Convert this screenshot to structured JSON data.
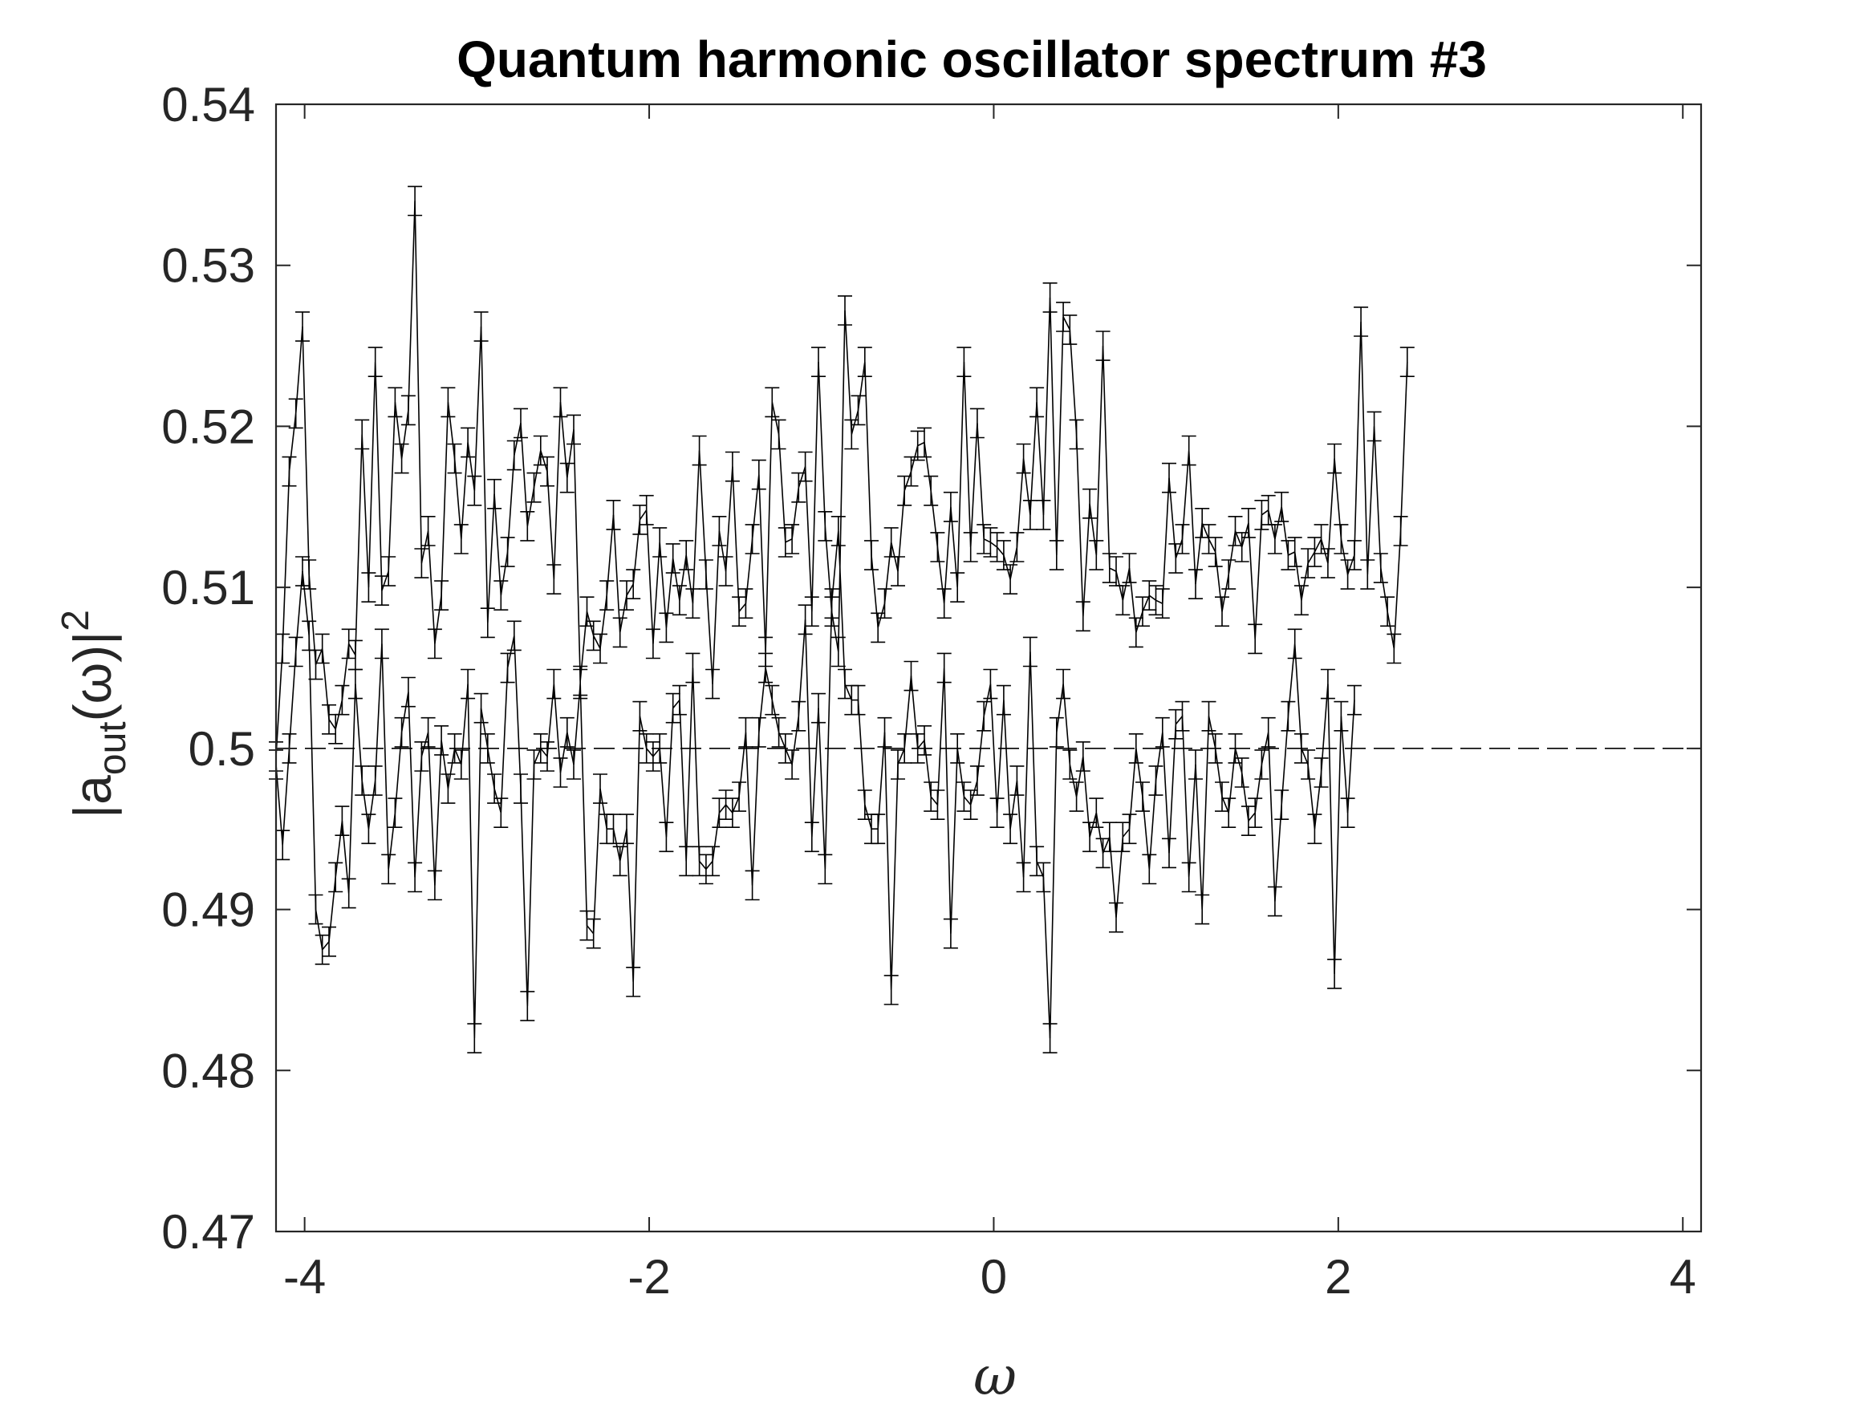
{
  "chart_data": {
    "type": "line",
    "title": "Quantum harmonic oscillator spectrum #3",
    "xlabel": "ω",
    "ylabel": {
      "prefix": "|a",
      "sub": "out",
      "mid": "(ω)|",
      "sup": "2"
    },
    "xlim": [
      -4.166,
      4.106
    ],
    "ylim": [
      0.47,
      0.54
    ],
    "xticks": [
      -4,
      -2,
      0,
      2,
      4
    ],
    "xtick_labels": [
      "-4",
      "-2",
      "0",
      "2",
      "4"
    ],
    "yticks": [
      0.47,
      0.48,
      0.49,
      0.5,
      0.51,
      0.52,
      0.53,
      0.54
    ],
    "ytick_labels": [
      "0.47",
      "0.48",
      "0.49",
      "0.5",
      "0.51",
      "0.52",
      "0.53",
      "0.54"
    ],
    "grid": false,
    "reference_line": {
      "y": 0.5,
      "style": "dashed"
    },
    "x_start": -4.166,
    "x_step": 0.0384,
    "errorbar": 0.0009,
    "series": [
      {
        "values": [
          0.4995,
          0.5062,
          0.5172,
          0.5208,
          0.5262,
          0.5108,
          0.5052,
          0.5062,
          0.5018,
          0.5012,
          0.503,
          0.5065,
          0.5058,
          0.5195,
          0.51,
          0.524,
          0.5098,
          0.511,
          0.5215,
          0.518,
          0.521,
          0.534,
          0.5115,
          0.5135,
          0.5065,
          0.5095,
          0.5215,
          0.518,
          0.513,
          0.519,
          0.516,
          0.5262,
          0.5078,
          0.5158,
          0.5095,
          0.5122,
          0.5182,
          0.5202,
          0.5138,
          0.5162,
          0.5185,
          0.5172,
          0.5105,
          0.5215,
          0.5168,
          0.5198,
          0.5042,
          0.5085,
          0.507,
          0.5062,
          0.5095,
          0.5145,
          0.5072,
          0.5095,
          0.5102,
          0.5142,
          0.5148,
          0.5065,
          0.5128,
          0.5075,
          0.5118,
          0.5092,
          0.512,
          0.509,
          0.5185,
          0.5108,
          0.504,
          0.5135,
          0.511,
          0.5175,
          0.5085,
          0.509,
          0.513,
          0.517,
          0.506,
          0.5215,
          0.5195,
          0.5128,
          0.513,
          0.5162,
          0.5175,
          0.5085,
          0.524,
          0.5138,
          0.5085,
          0.506,
          0.5272,
          0.5195,
          0.521,
          0.524,
          0.512,
          0.5075,
          0.509,
          0.5128,
          0.511,
          0.516,
          0.5172,
          0.5188,
          0.519,
          0.516,
          0.5125,
          0.509,
          0.515,
          0.51,
          0.524,
          0.5125,
          0.5202,
          0.513,
          0.5128,
          0.5125,
          0.512,
          0.5105,
          0.5125,
          0.518,
          0.5145,
          0.5215,
          0.5145,
          0.528,
          0.512,
          0.5268,
          0.526,
          0.5195,
          0.5082,
          0.5152,
          0.512,
          0.525,
          0.5112,
          0.511,
          0.5092,
          0.5112,
          0.5072,
          0.5085,
          0.5095,
          0.5092,
          0.509,
          0.5168,
          0.5118,
          0.513,
          0.5185,
          0.5102,
          0.514,
          0.513,
          0.5122,
          0.5085,
          0.5108,
          0.5135,
          0.5125,
          0.514,
          0.5068,
          0.5145,
          0.5148,
          0.513,
          0.515,
          0.512,
          0.5122,
          0.5092,
          0.5115,
          0.5122,
          0.513,
          0.5115,
          0.518,
          0.513,
          0.5108,
          0.512,
          0.5265,
          0.5108,
          0.52,
          0.5112,
          0.5085,
          0.5062,
          0.5135,
          0.524
        ]
      },
      {
        "values": [
          0.499,
          0.494,
          0.5,
          0.506,
          0.511,
          0.507,
          0.49,
          0.4875,
          0.488,
          0.492,
          0.4955,
          0.491,
          0.504,
          0.498,
          0.495,
          0.498,
          0.5065,
          0.4925,
          0.496,
          0.501,
          0.5035,
          0.492,
          0.4995,
          0.501,
          0.4915,
          0.5005,
          0.4975,
          0.5,
          0.499,
          0.504,
          0.482,
          0.5025,
          0.5,
          0.4975,
          0.496,
          0.505,
          0.507,
          0.4975,
          0.484,
          0.499,
          0.5,
          0.4995,
          0.504,
          0.4985,
          0.501,
          0.499,
          0.504,
          0.489,
          0.4885,
          0.4975,
          0.495,
          0.495,
          0.493,
          0.495,
          0.4855,
          0.502,
          0.5,
          0.4995,
          0.5,
          0.4945,
          0.5025,
          0.503,
          0.493,
          0.505,
          0.493,
          0.4925,
          0.493,
          0.496,
          0.4965,
          0.496,
          0.497,
          0.501,
          0.4915,
          0.501,
          0.505,
          0.503,
          0.501,
          0.5,
          0.499,
          0.502,
          0.508,
          0.4945,
          0.5025,
          0.4925,
          0.509,
          0.5135,
          0.504,
          0.503,
          0.503,
          0.4965,
          0.495,
          0.495,
          0.501,
          0.485,
          0.499,
          0.5,
          0.5045,
          0.5,
          0.5005,
          0.497,
          0.4965,
          0.505,
          0.4885,
          0.5,
          0.497,
          0.4965,
          0.498,
          0.502,
          0.504,
          0.496,
          0.503,
          0.495,
          0.498,
          0.492,
          0.506,
          0.493,
          0.492,
          0.482,
          0.501,
          0.504,
          0.499,
          0.497,
          0.4995,
          0.4945,
          0.496,
          0.4935,
          0.4945,
          0.4895,
          0.4945,
          0.495,
          0.5,
          0.497,
          0.4925,
          0.498,
          0.501,
          0.4935,
          0.5015,
          0.502,
          0.492,
          0.499,
          0.49,
          0.502,
          0.5,
          0.497,
          0.496,
          0.5,
          0.4985,
          0.4955,
          0.496,
          0.499,
          0.501,
          0.4905,
          0.4965,
          0.502,
          0.5065,
          0.5,
          0.499,
          0.495,
          0.4985,
          0.504,
          0.486,
          0.502,
          0.496,
          0.503
        ]
      }
    ]
  }
}
